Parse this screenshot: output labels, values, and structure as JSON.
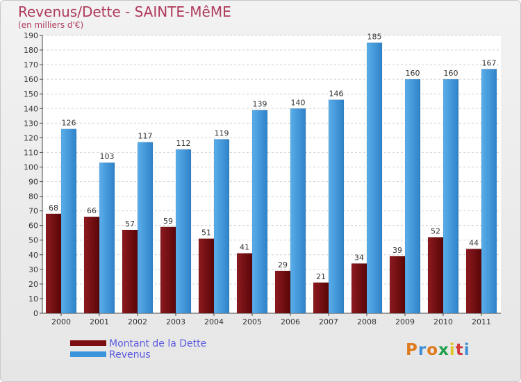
{
  "chart_data": {
    "type": "bar",
    "title": "Revenus/Dette - SAINTE-MêME",
    "subtitle": "(en milliers d'€)",
    "categories": [
      "2000",
      "2001",
      "2002",
      "2003",
      "2004",
      "2005",
      "2006",
      "2007",
      "2008",
      "2009",
      "2010",
      "2011"
    ],
    "series": [
      {
        "name": "Montant de la Dette",
        "color": "#7a0c12",
        "values": [
          68,
          66,
          57,
          59,
          51,
          41,
          29,
          21,
          34,
          39,
          52,
          44
        ]
      },
      {
        "name": "Revenus",
        "color": "#3b95dc",
        "values": [
          126,
          103,
          117,
          112,
          119,
          139,
          140,
          146,
          185,
          160,
          160,
          167
        ]
      }
    ],
    "ylim": [
      0,
      190
    ],
    "yticks": [
      0,
      10,
      20,
      30,
      40,
      50,
      60,
      70,
      80,
      90,
      100,
      110,
      120,
      130,
      140,
      150,
      160,
      170,
      180,
      190
    ],
    "grid": true,
    "legend": "bottom-left"
  },
  "legend": {
    "items": [
      {
        "label": "Montant de la Dette",
        "color": "#7a0c12"
      },
      {
        "label": "Revenus",
        "color": "#3b95dc"
      }
    ]
  },
  "logo": {
    "text": "Proxiti"
  }
}
